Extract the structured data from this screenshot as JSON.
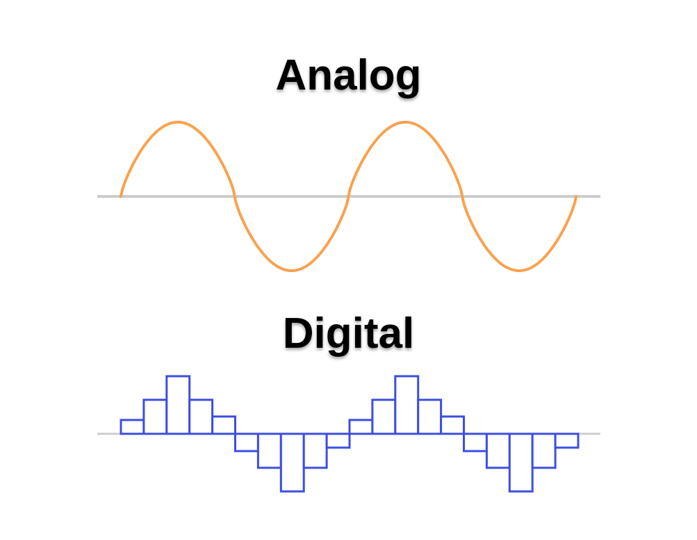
{
  "analog": {
    "title": "Analog",
    "wave_color": "#f8a24f",
    "axis_color": "#cccccc",
    "cycles": 2
  },
  "digital": {
    "title": "Digital",
    "bar_color": "#3c4ee0",
    "axis_color": "#cccccc",
    "steps": [
      0.24,
      0.59,
      1.0,
      0.59,
      0.3,
      -0.3,
      -0.59,
      -1.0,
      -0.59,
      -0.24,
      0.24,
      0.59,
      1.0,
      0.59,
      0.3,
      -0.3,
      -0.59,
      -1.0,
      -0.59,
      -0.24
    ]
  }
}
